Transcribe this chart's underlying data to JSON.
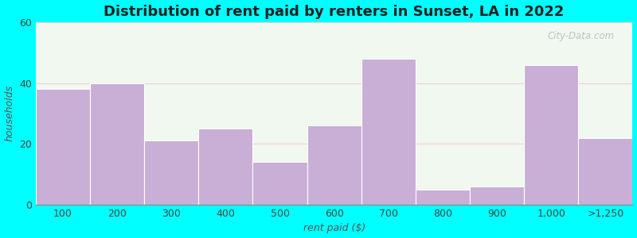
{
  "categories": [
    "100",
    "200",
    "300",
    "400",
    "500",
    "600",
    "700",
    "800",
    "900",
    "1,000",
    ">1,250"
  ],
  "values": [
    38,
    40,
    21,
    25,
    14,
    26,
    48,
    5,
    6,
    46,
    22
  ],
  "bar_color": "#c9aed6",
  "bar_edge_color": "#ffffff",
  "title": "Distribution of rent paid by renters in Sunset, LA in 2022",
  "xlabel": "rent paid ($)",
  "ylabel": "households",
  "ylim": [
    0,
    60
  ],
  "yticks": [
    0,
    20,
    40,
    60
  ],
  "outer_background": "#00ffff",
  "plot_bg_color": "#f0f8f0",
  "title_fontsize": 13,
  "axis_label_fontsize": 9,
  "watermark_text": "City-Data.com"
}
